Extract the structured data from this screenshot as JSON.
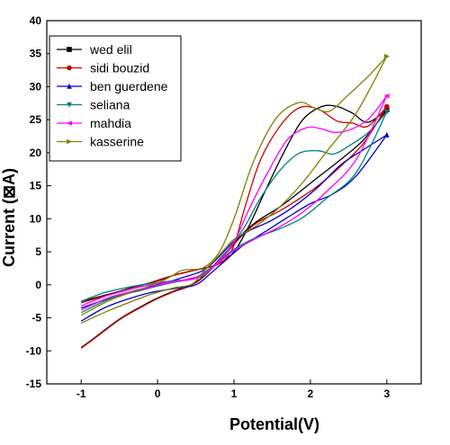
{
  "chart_data": {
    "type": "line",
    "title": "",
    "xlabel": "Potential(V)",
    "ylabel": "Current (⊠A)",
    "xlim": [
      -1.45,
      3.45
    ],
    "ylim": [
      -15,
      40
    ],
    "xticks": [
      -1,
      0,
      1,
      2,
      3
    ],
    "yticks": [
      -15,
      -10,
      -5,
      0,
      5,
      10,
      15,
      20,
      25,
      30,
      35,
      40
    ],
    "grid": false,
    "legend_position": "top-left",
    "series": [
      {
        "name": "wed elil",
        "color": "#000000",
        "marker": "square",
        "forward": [
          [
            -1,
            -9.5
          ],
          [
            -0.8,
            -7.8
          ],
          [
            -0.5,
            -5.2
          ],
          [
            -0.2,
            -3.2
          ],
          [
            0,
            -2
          ],
          [
            0.2,
            -1
          ],
          [
            0.4,
            -0.2
          ],
          [
            0.55,
            0.8
          ],
          [
            0.7,
            2.5
          ],
          [
            0.9,
            5
          ],
          [
            1.1,
            7.6
          ],
          [
            1.3,
            9.6
          ],
          [
            1.6,
            11.8
          ],
          [
            1.85,
            14
          ],
          [
            2.1,
            16.3
          ],
          [
            2.4,
            19
          ],
          [
            2.7,
            22
          ],
          [
            3,
            26.5
          ]
        ],
        "reverse": [
          [
            3,
            26.5
          ],
          [
            2.75,
            24.6
          ],
          [
            2.55,
            26
          ],
          [
            2.35,
            27
          ],
          [
            2.15,
            27
          ],
          [
            1.9,
            25
          ],
          [
            1.65,
            20
          ],
          [
            1.4,
            14
          ],
          [
            1.2,
            9
          ],
          [
            1,
            5
          ],
          [
            0.8,
            3.2
          ],
          [
            0.6,
            2.5
          ],
          [
            0.4,
            2
          ],
          [
            0.2,
            1.4
          ],
          [
            0,
            0.6
          ],
          [
            -0.3,
            -0.3
          ],
          [
            -0.6,
            -1.3
          ],
          [
            -1,
            -2.5
          ]
        ]
      },
      {
        "name": "sidi bouzid",
        "color": "#cc0000",
        "marker": "circle",
        "forward": [
          [
            -1,
            -9.6
          ],
          [
            -0.8,
            -7.9
          ],
          [
            -0.5,
            -5.3
          ],
          [
            -0.2,
            -3.3
          ],
          [
            0,
            -2.1
          ],
          [
            0.2,
            -1.1
          ],
          [
            0.4,
            -0.3
          ],
          [
            0.55,
            0.7
          ],
          [
            0.7,
            2.3
          ],
          [
            0.9,
            4.8
          ],
          [
            1.1,
            7.4
          ],
          [
            1.3,
            9.4
          ],
          [
            1.6,
            11.2
          ],
          [
            1.85,
            13
          ],
          [
            2.1,
            15
          ],
          [
            2.4,
            18
          ],
          [
            2.7,
            21.5
          ],
          [
            3,
            27
          ]
        ],
        "reverse": [
          [
            3,
            27
          ],
          [
            2.75,
            24
          ],
          [
            2.55,
            24.5
          ],
          [
            2.35,
            24.8
          ],
          [
            2.1,
            26.6
          ],
          [
            1.85,
            26.8
          ],
          [
            1.6,
            24
          ],
          [
            1.35,
            19
          ],
          [
            1.15,
            12
          ],
          [
            1,
            6
          ],
          [
            0.85,
            3.5
          ],
          [
            0.65,
            2.6
          ],
          [
            0.45,
            2.1
          ],
          [
            0.2,
            1.4
          ],
          [
            0,
            0.7
          ],
          [
            -0.3,
            -0.4
          ],
          [
            -0.6,
            -1.4
          ],
          [
            -1,
            -2.7
          ]
        ]
      },
      {
        "name": "ben guerdene",
        "color": "#0000cc",
        "marker": "triangle-up",
        "forward": [
          [
            -1,
            -5.5
          ],
          [
            -0.7,
            -3.5
          ],
          [
            -0.4,
            -2.2
          ],
          [
            -0.1,
            -1.2
          ],
          [
            0.2,
            -0.6
          ],
          [
            0.5,
            0
          ],
          [
            0.7,
            1.8
          ],
          [
            0.9,
            3.8
          ],
          [
            1.1,
            5.8
          ],
          [
            1.4,
            8
          ],
          [
            1.7,
            10.2
          ],
          [
            2,
            12.3
          ],
          [
            2.3,
            13.8
          ],
          [
            2.6,
            16.5
          ],
          [
            3,
            22.7
          ]
        ],
        "reverse": [
          [
            3,
            22.7
          ],
          [
            2.7,
            20.5
          ],
          [
            2.4,
            18.2
          ],
          [
            2.1,
            14.8
          ],
          [
            1.8,
            12
          ],
          [
            1.5,
            9.8
          ],
          [
            1.2,
            8.2
          ],
          [
            1,
            6.6
          ],
          [
            0.8,
            4.2
          ],
          [
            0.6,
            2.2
          ],
          [
            0.3,
            1
          ],
          [
            0,
            0
          ],
          [
            -0.4,
            -1.2
          ],
          [
            -0.7,
            -2.3
          ],
          [
            -1,
            -3.5
          ]
        ]
      },
      {
        "name": "seliana",
        "color": "#008080",
        "marker": "triangle-down",
        "forward": [
          [
            -1,
            -2.5
          ],
          [
            -0.7,
            -1.2
          ],
          [
            -0.4,
            -0.4
          ],
          [
            -0.1,
            0.2
          ],
          [
            0.2,
            0.6
          ],
          [
            0.45,
            0.9
          ],
          [
            0.6,
            1.8
          ],
          [
            0.8,
            3.5
          ],
          [
            1,
            5.4
          ],
          [
            1.3,
            7.2
          ],
          [
            1.6,
            8.5
          ],
          [
            1.9,
            10.2
          ],
          [
            2.2,
            13
          ],
          [
            2.6,
            17
          ],
          [
            3,
            26.2
          ]
        ],
        "reverse": [
          [
            3,
            26.2
          ],
          [
            2.75,
            23
          ],
          [
            2.5,
            21
          ],
          [
            2.3,
            19.8
          ],
          [
            2.1,
            20.3
          ],
          [
            1.85,
            19.9
          ],
          [
            1.6,
            17.3
          ],
          [
            1.35,
            13.2
          ],
          [
            1.15,
            9
          ],
          [
            1,
            6.5
          ],
          [
            0.8,
            3.6
          ],
          [
            0.6,
            1.4
          ],
          [
            0.4,
            0.8
          ],
          [
            0.1,
            0.1
          ],
          [
            -0.2,
            -0.8
          ],
          [
            -0.6,
            -2
          ],
          [
            -1,
            -4.2
          ]
        ]
      },
      {
        "name": "mahdia",
        "color": "#ff00ff",
        "marker": "triangle-left",
        "forward": [
          [
            -1,
            -3.2
          ],
          [
            -0.7,
            -1.8
          ],
          [
            -0.4,
            -0.8
          ],
          [
            -0.1,
            0
          ],
          [
            0.2,
            0.5
          ],
          [
            0.45,
            0.8
          ],
          [
            0.6,
            1.6
          ],
          [
            0.8,
            3.3
          ],
          [
            1,
            5.2
          ],
          [
            1.3,
            7.1
          ],
          [
            1.6,
            8.8
          ],
          [
            1.9,
            11
          ],
          [
            2.2,
            14
          ],
          [
            2.6,
            19
          ],
          [
            3,
            28.6
          ]
        ],
        "reverse": [
          [
            3,
            28.6
          ],
          [
            2.75,
            25
          ],
          [
            2.5,
            23.4
          ],
          [
            2.3,
            23.1
          ],
          [
            2.15,
            23.6
          ],
          [
            1.95,
            23.8
          ],
          [
            1.7,
            22
          ],
          [
            1.45,
            17.2
          ],
          [
            1.2,
            11.5
          ],
          [
            1,
            6.5
          ],
          [
            0.8,
            3.6
          ],
          [
            0.6,
            1.6
          ],
          [
            0.4,
            0.9
          ],
          [
            0.1,
            0.2
          ],
          [
            -0.2,
            -0.7
          ],
          [
            -0.6,
            -1.8
          ],
          [
            -1,
            -3.8
          ]
        ]
      },
      {
        "name": "kasserine",
        "color": "#808000",
        "marker": "triangle-right",
        "forward": [
          [
            -1,
            -5.8
          ],
          [
            -0.7,
            -4.2
          ],
          [
            -0.4,
            -2.8
          ],
          [
            -0.1,
            -1.5
          ],
          [
            0.2,
            -0.5
          ],
          [
            0.45,
            0.1
          ],
          [
            0.6,
            2
          ],
          [
            0.8,
            4.4
          ],
          [
            1,
            6.9
          ],
          [
            1.3,
            9
          ],
          [
            1.6,
            11.8
          ],
          [
            1.9,
            15.5
          ],
          [
            2.2,
            20
          ],
          [
            2.6,
            26
          ],
          [
            3,
            34.6
          ]
        ],
        "reverse": [
          [
            3,
            34.6
          ],
          [
            2.75,
            31.5
          ],
          [
            2.5,
            28.8
          ],
          [
            2.25,
            26.3
          ],
          [
            2.05,
            26.8
          ],
          [
            1.85,
            27.6
          ],
          [
            1.55,
            25.2
          ],
          [
            1.25,
            18.5
          ],
          [
            1,
            10
          ],
          [
            0.8,
            4.8
          ],
          [
            0.6,
            2.6
          ],
          [
            0.4,
            2.3
          ],
          [
            0.3,
            2.1
          ],
          [
            0.1,
            0.8
          ],
          [
            -0.2,
            -0.6
          ],
          [
            -0.6,
            -2.2
          ],
          [
            -1,
            -4.6
          ]
        ]
      }
    ]
  }
}
